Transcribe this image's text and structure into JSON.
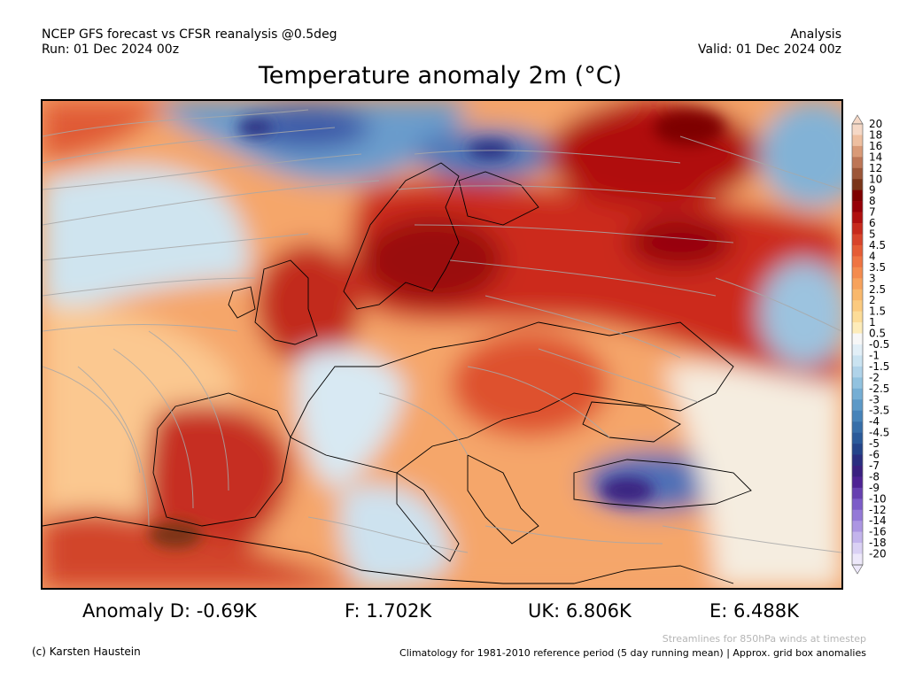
{
  "header": {
    "left_line1": "NCEP GFS forecast vs CFSR reanalysis @0.5deg",
    "left_line2": "Run: 01 Dec 2024 00z",
    "right_line1": "Analysis",
    "right_line2": "Valid: 01 Dec 2024 00z"
  },
  "title": "Temperature anomaly 2m (°C)",
  "colorbar": {
    "labels": [
      "20",
      "18",
      "16",
      "14",
      "12",
      "10",
      "9",
      "8",
      "7",
      "6",
      "5",
      "4.5",
      "4",
      "3.5",
      "3",
      "2.5",
      "2",
      "1.5",
      "1",
      "0.5",
      "-0.5",
      "-1",
      "-1.5",
      "-2",
      "-2.5",
      "-3",
      "-3.5",
      "-4",
      "-4.5",
      "-5",
      "-6",
      "-7",
      "-8",
      "-9",
      "-10",
      "-12",
      "-14",
      "-16",
      "-18",
      "-20"
    ],
    "colors": [
      "#f5d8c6",
      "#eebfa0",
      "#d99a77",
      "#bd7656",
      "#9c5638",
      "#7a3519",
      "#7e0000",
      "#960007",
      "#b0100f",
      "#c72a1c",
      "#d8442b",
      "#e55c35",
      "#ef7442",
      "#f48b4e",
      "#f7a25c",
      "#f9b86c",
      "#fbca7f",
      "#fcdc98",
      "#fdecba",
      "#f7f7f7",
      "#e2eff7",
      "#cae3f1",
      "#b0d3e9",
      "#92c2df",
      "#75aed4",
      "#5c99c7",
      "#4683b9",
      "#366ea9",
      "#2a5a9a",
      "#24448a",
      "#2a2e80",
      "#3a2080",
      "#4e2294",
      "#6640b0",
      "#7c5cc8",
      "#9479d7",
      "#ac96e2",
      "#c3b4ec",
      "#dad1f4",
      "#ede8fa"
    ]
  },
  "stats": {
    "d": "Anomaly D: -0.69K",
    "f": "F: 1.702K",
    "uk": "UK: 6.806K",
    "e": "E: 6.488K"
  },
  "footer": {
    "streamline_note": "Streamlines for 850hPa winds at timestep",
    "credit": "(c) Karsten Haustein",
    "climatology": "Climatology for 1981-2010 reference period (5 day running mean) | Approx. grid box anomalies"
  }
}
